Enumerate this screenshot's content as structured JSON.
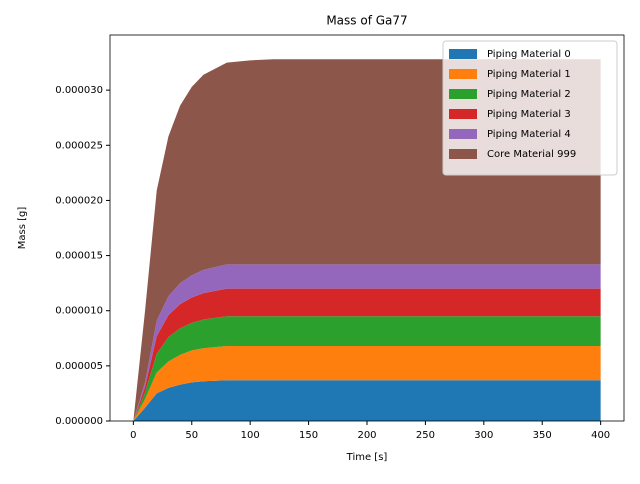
{
  "chart_data": {
    "type": "stacked_area",
    "title": "Mass of Ga77",
    "xlabel": "Time [s]",
    "ylabel": "Mass [g]",
    "x": [
      0,
      10,
      20,
      30,
      40,
      50,
      60,
      80,
      100,
      120,
      140,
      160,
      180,
      200,
      220,
      240,
      260,
      280,
      300,
      320,
      340,
      360,
      380,
      400
    ],
    "series": [
      {
        "name": "Piping Material 0",
        "color": "#1f77b4",
        "values": [
          0,
          1.2e-06,
          2.5e-06,
          3e-06,
          3.3e-06,
          3.5e-06,
          3.6e-06,
          3.7e-06,
          3.7e-06,
          3.7e-06,
          3.7e-06,
          3.7e-06,
          3.7e-06,
          3.7e-06,
          3.7e-06,
          3.7e-06,
          3.7e-06,
          3.7e-06,
          3.7e-06,
          3.7e-06,
          3.7e-06,
          3.7e-06,
          3.7e-06,
          3.7e-06
        ]
      },
      {
        "name": "Piping Material 1",
        "color": "#ff7f0e",
        "values": [
          0,
          8e-07,
          1.9e-06,
          2.4e-06,
          2.7e-06,
          2.9e-06,
          3e-06,
          3.1e-06,
          3.1e-06,
          3.1e-06,
          3.1e-06,
          3.1e-06,
          3.1e-06,
          3.1e-06,
          3.1e-06,
          3.1e-06,
          3.1e-06,
          3.1e-06,
          3.1e-06,
          3.1e-06,
          3.1e-06,
          3.1e-06,
          3.1e-06,
          3.1e-06
        ]
      },
      {
        "name": "Piping Material 2",
        "color": "#2ca02c",
        "values": [
          0,
          6e-07,
          1.7e-06,
          2.2e-06,
          2.4e-06,
          2.5e-06,
          2.6e-06,
          2.7e-06,
          2.7e-06,
          2.7e-06,
          2.7e-06,
          2.7e-06,
          2.7e-06,
          2.7e-06,
          2.7e-06,
          2.7e-06,
          2.7e-06,
          2.7e-06,
          2.7e-06,
          2.7e-06,
          2.7e-06,
          2.7e-06,
          2.7e-06,
          2.7e-06
        ]
      },
      {
        "name": "Piping Material 3",
        "color": "#d62728",
        "values": [
          0,
          5e-07,
          1.6e-06,
          2e-06,
          2.2e-06,
          2.3e-06,
          2.4e-06,
          2.5e-06,
          2.5e-06,
          2.5e-06,
          2.5e-06,
          2.5e-06,
          2.5e-06,
          2.5e-06,
          2.5e-06,
          2.5e-06,
          2.5e-06,
          2.5e-06,
          2.5e-06,
          2.5e-06,
          2.5e-06,
          2.5e-06,
          2.5e-06,
          2.5e-06
        ]
      },
      {
        "name": "Piping Material 4",
        "color": "#9467bd",
        "values": [
          0,
          4e-07,
          1.4e-06,
          1.7e-06,
          1.9e-06,
          2e-06,
          2.1e-06,
          2.2e-06,
          2.2e-06,
          2.2e-06,
          2.2e-06,
          2.2e-06,
          2.2e-06,
          2.2e-06,
          2.2e-06,
          2.2e-06,
          2.2e-06,
          2.2e-06,
          2.2e-06,
          2.2e-06,
          2.2e-06,
          2.2e-06,
          2.2e-06,
          2.2e-06
        ]
      },
      {
        "name": "Core Material 999",
        "color": "#8c564b",
        "values": [
          0,
          6.5e-06,
          1.18e-05,
          1.45e-05,
          1.61e-05,
          1.71e-05,
          1.77e-05,
          1.83e-05,
          1.85e-05,
          1.86e-05,
          1.86e-05,
          1.86e-05,
          1.86e-05,
          1.86e-05,
          1.86e-05,
          1.86e-05,
          1.86e-05,
          1.86e-05,
          1.86e-05,
          1.86e-05,
          1.86e-05,
          1.86e-05,
          1.86e-05,
          1.86e-05
        ]
      }
    ],
    "xlim": [
      -20,
      420
    ],
    "xticks": [
      0,
      50,
      100,
      150,
      200,
      250,
      300,
      350,
      400
    ],
    "ylim": [
      0,
      3.5e-05
    ],
    "yticks": [
      {
        "value": 0,
        "label": "0.000000"
      },
      {
        "value": 5e-06,
        "label": "0.000005"
      },
      {
        "value": 1e-05,
        "label": "0.000010"
      },
      {
        "value": 1.5e-05,
        "label": "0.000015"
      },
      {
        "value": 2e-05,
        "label": "0.000020"
      },
      {
        "value": 2.5e-05,
        "label": "0.000025"
      },
      {
        "value": 3e-05,
        "label": "0.000030"
      }
    ],
    "legend": "upper right"
  }
}
